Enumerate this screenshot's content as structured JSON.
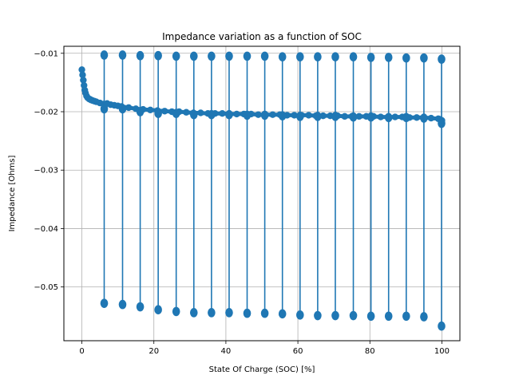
{
  "chart_data": {
    "type": "scatter",
    "title": "Impedance variation as a function of SOC",
    "xlabel": "State Of Charge (SOC) [%]",
    "ylabel": "Impedance [Ohms]",
    "xlim": [
      -5,
      105
    ],
    "ylim": [
      -0.0592,
      -0.0088
    ],
    "x_ticks": [
      0,
      20,
      40,
      60,
      80,
      100
    ],
    "x_tick_labels": [
      "0",
      "20",
      "40",
      "60",
      "80",
      "100"
    ],
    "y_ticks": [
      -0.01,
      -0.02,
      -0.03,
      -0.04,
      -0.05
    ],
    "y_tick_labels": [
      "−0.01",
      "−0.02",
      "−0.03",
      "−0.04",
      "−0.05"
    ],
    "grid": true,
    "legend": "none",
    "series_color": "#1f77b4",
    "marker": "circle",
    "series": [
      {
        "points": [
          [
            0,
            -0.0128
          ],
          [
            0.2,
            -0.0137
          ],
          [
            0.4,
            -0.0146
          ],
          [
            0.6,
            -0.0155
          ],
          [
            0.8,
            -0.0163
          ],
          [
            1.0,
            -0.0168
          ],
          [
            1.3,
            -0.0173
          ],
          [
            1.6,
            -0.0176
          ],
          [
            2.0,
            -0.0178
          ],
          [
            2.3,
            -0.0179
          ],
          [
            2.6,
            -0.018
          ],
          [
            3.0,
            -0.0181
          ],
          [
            3.5,
            -0.0182
          ],
          [
            4.0,
            -0.0183
          ],
          [
            5.0,
            -0.0185
          ],
          [
            6.0,
            -0.0187
          ],
          [
            7.0,
            -0.0186
          ],
          [
            8.0,
            -0.0188
          ],
          [
            9.0,
            -0.0189
          ],
          [
            10.0,
            -0.019
          ],
          [
            11.0,
            -0.0191
          ],
          [
            13.0,
            -0.0193
          ],
          [
            15.0,
            -0.0195
          ],
          [
            17.0,
            -0.0196
          ],
          [
            19.0,
            -0.0197
          ],
          [
            21.0,
            -0.0198
          ],
          [
            23.0,
            -0.0199
          ],
          [
            25.0,
            -0.02
          ],
          [
            27.0,
            -0.02
          ],
          [
            29.0,
            -0.0201
          ],
          [
            31.0,
            -0.0202
          ],
          [
            33.0,
            -0.0202
          ],
          [
            35.0,
            -0.0203
          ],
          [
            37.0,
            -0.0203
          ],
          [
            39.0,
            -0.0203
          ],
          [
            41.0,
            -0.0204
          ],
          [
            43.0,
            -0.0204
          ],
          [
            45.0,
            -0.0204
          ],
          [
            47.0,
            -0.0204
          ],
          [
            49.0,
            -0.0205
          ],
          [
            51.0,
            -0.0205
          ],
          [
            53.0,
            -0.0205
          ],
          [
            55.0,
            -0.0205
          ],
          [
            57.0,
            -0.0206
          ],
          [
            59.0,
            -0.0206
          ],
          [
            61.0,
            -0.0206
          ],
          [
            63.0,
            -0.0206
          ],
          [
            65.0,
            -0.0207
          ],
          [
            67.0,
            -0.0207
          ],
          [
            69.0,
            -0.0207
          ],
          [
            71.0,
            -0.0207
          ],
          [
            73.0,
            -0.0208
          ],
          [
            75.0,
            -0.0208
          ],
          [
            77.0,
            -0.0208
          ],
          [
            79.0,
            -0.0208
          ],
          [
            81.0,
            -0.0208
          ],
          [
            83.0,
            -0.0209
          ],
          [
            85.0,
            -0.0209
          ],
          [
            87.0,
            -0.0209
          ],
          [
            89.0,
            -0.0209
          ],
          [
            91.0,
            -0.021
          ],
          [
            93.0,
            -0.021
          ],
          [
            95.0,
            -0.021
          ],
          [
            97.0,
            -0.0211
          ],
          [
            99.0,
            -0.0212
          ],
          [
            99.5,
            -0.0213
          ],
          [
            100,
            -0.0215
          ]
        ],
        "spikes": [
          {
            "x": 6.2,
            "top": -0.0103,
            "bottom": -0.0528,
            "base": -0.0195
          },
          {
            "x": 11.3,
            "top": -0.0103,
            "bottom": -0.053,
            "base": -0.0195
          },
          {
            "x": 16.2,
            "top": -0.0104,
            "bottom": -0.0534,
            "base": -0.02
          },
          {
            "x": 21.2,
            "top": -0.0104,
            "bottom": -0.0539,
            "base": -0.0203
          },
          {
            "x": 26.2,
            "top": -0.0105,
            "bottom": -0.0542,
            "base": -0.0203
          },
          {
            "x": 31.1,
            "top": -0.0105,
            "bottom": -0.0544,
            "base": -0.0205
          },
          {
            "x": 36.0,
            "top": -0.0105,
            "bottom": -0.0544,
            "base": -0.0205
          },
          {
            "x": 40.9,
            "top": -0.0105,
            "bottom": -0.0544,
            "base": -0.0205
          },
          {
            "x": 45.9,
            "top": -0.0105,
            "bottom": -0.0545,
            "base": -0.0206
          },
          {
            "x": 50.8,
            "top": -0.0105,
            "bottom": -0.0545,
            "base": -0.0206
          },
          {
            "x": 55.7,
            "top": -0.0106,
            "bottom": -0.0546,
            "base": -0.0207
          },
          {
            "x": 60.6,
            "top": -0.0106,
            "bottom": -0.0548,
            "base": -0.0208
          },
          {
            "x": 65.5,
            "top": -0.0106,
            "bottom": -0.0549,
            "base": -0.0208
          },
          {
            "x": 70.4,
            "top": -0.0106,
            "bottom": -0.0549,
            "base": -0.0208
          },
          {
            "x": 75.4,
            "top": -0.0106,
            "bottom": -0.0549,
            "base": -0.0209
          },
          {
            "x": 80.3,
            "top": -0.0107,
            "bottom": -0.055,
            "base": -0.0209
          },
          {
            "x": 85.2,
            "top": -0.0107,
            "bottom": -0.055,
            "base": -0.021
          },
          {
            "x": 90.1,
            "top": -0.0108,
            "bottom": -0.055,
            "base": -0.021
          },
          {
            "x": 95.0,
            "top": -0.0108,
            "bottom": -0.0551,
            "base": -0.0211
          },
          {
            "x": 99.9,
            "top": -0.011,
            "bottom": -0.0567,
            "base": -0.022
          }
        ]
      }
    ]
  }
}
